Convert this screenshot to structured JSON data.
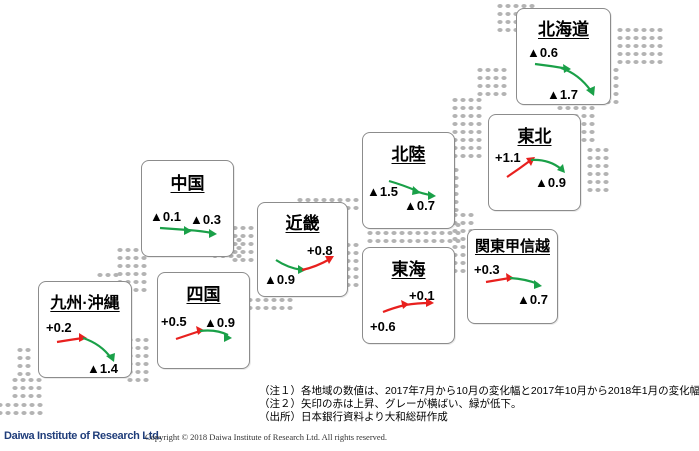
{
  "colors": {
    "up": "#e8201e",
    "down": "#1aa048",
    "flat": "#8c8c8c",
    "dots": "#b3b3b3"
  },
  "regions": [
    {
      "id": "hokkaido",
      "title": "北海道",
      "first": "▲0.6",
      "second": "▲1.7",
      "direction": "down"
    },
    {
      "id": "tohoku",
      "title": "東北",
      "first": "+1.1",
      "second": "▲0.9",
      "direction": "up-down"
    },
    {
      "id": "hokuriku",
      "title": "北陸",
      "first": "▲1.5",
      "second": "▲0.7",
      "direction": "down"
    },
    {
      "id": "kanto",
      "title": "関東甲信越",
      "first": "+0.3",
      "second": "▲0.7",
      "direction": "up-down"
    },
    {
      "id": "tokai",
      "title": "東海",
      "first": "+0.6",
      "second": "+0.1",
      "direction": "up"
    },
    {
      "id": "kinki",
      "title": "近畿",
      "first": "▲0.9",
      "second": "+0.8",
      "direction": "down-up"
    },
    {
      "id": "chugoku",
      "title": "中国",
      "first": "▲0.1",
      "second": "▲0.3",
      "direction": "down"
    },
    {
      "id": "shikoku",
      "title": "四国",
      "first": "+0.5",
      "second": "▲0.9",
      "direction": "up-down"
    },
    {
      "id": "kyushu",
      "title": "九州·沖縄",
      "first": "+0.2",
      "second": "▲1.4",
      "direction": "up-down"
    }
  ],
  "notes": [
    "（注１）各地域の数値は、2017年7月から10月の変化幅と2017年10月から2018年1月の変化幅。",
    "（注２）矢印の赤は上昇、グレーが横ばい、緑が低下。",
    "（出所）日本銀行資料より大和総研作成"
  ],
  "footer": {
    "logo": "Daiwa Institute of Research Ltd.",
    "copyright": "Copyright © 2018 Daiwa Institute of Research Ltd. All rights reserved."
  }
}
